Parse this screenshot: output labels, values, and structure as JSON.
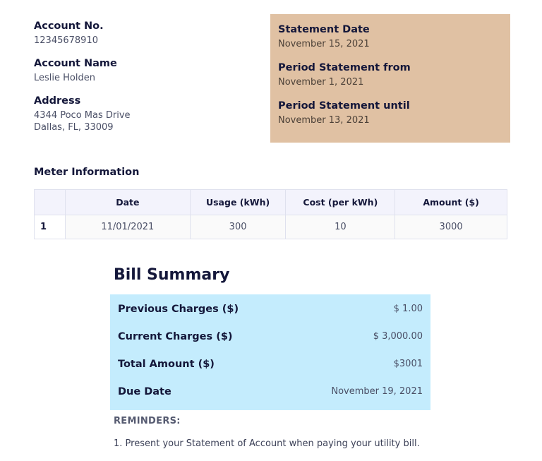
{
  "account": {
    "number_label": "Account No.",
    "number": "12345678910",
    "name_label": "Account Name",
    "name": "Leslie Holden",
    "address_label": "Address",
    "address_line1": "4344 Poco Mas Drive",
    "address_line2": "Dallas, FL, 33009"
  },
  "statement": {
    "date_label": "Statement Date",
    "date": "November 15, 2021",
    "from_label": "Period Statement from",
    "from": "November 1, 2021",
    "until_label": "Period Statement until",
    "until": "November 13, 2021",
    "bg_color": "#e0c1a3"
  },
  "meter": {
    "title": "Meter Information",
    "headers": [
      "",
      "Date",
      "Usage (kWh)",
      "Cost (per kWh)",
      "Amount ($)"
    ],
    "rows": [
      [
        "1",
        "11/01/2021",
        "300",
        "10",
        "3000"
      ]
    ]
  },
  "bill": {
    "title": "Bill Summary",
    "bg_color": "#c4ecfd",
    "rows": [
      {
        "label": "Previous Charges ($)",
        "value": "$ 1.00"
      },
      {
        "label": "Current Charges ($)",
        "value": "$ 3,000.00"
      },
      {
        "label": "Total Amount ($)",
        "value": "$3001"
      },
      {
        "label": "Due Date",
        "value": "November 19, 2021"
      }
    ]
  },
  "reminders": {
    "title": "REMINDERS:",
    "items": [
      "1. Present your Statement of Account when paying your utility bill."
    ]
  }
}
